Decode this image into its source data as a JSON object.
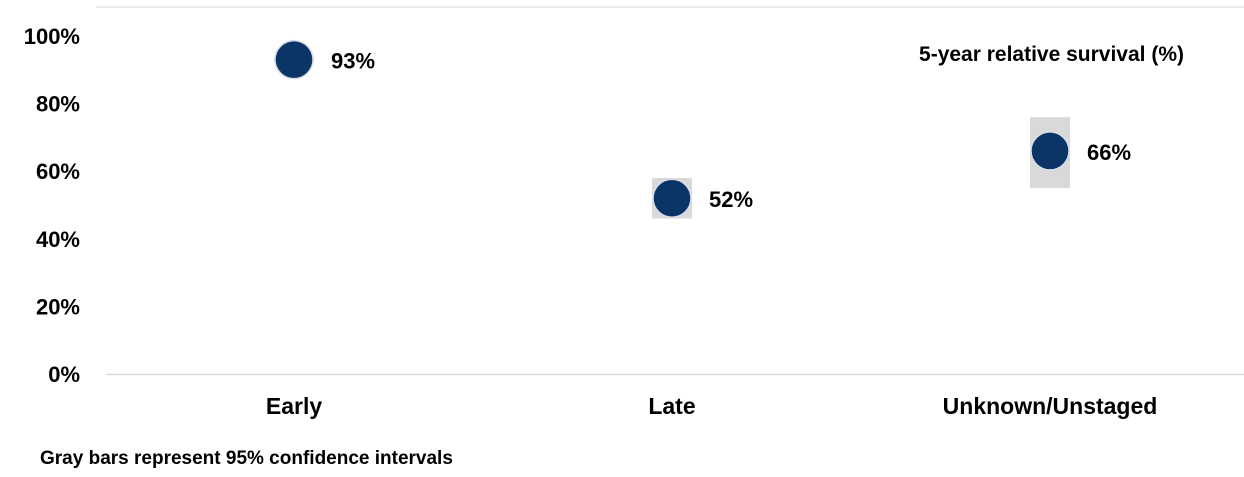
{
  "chart_data": {
    "type": "scatter",
    "title": "5-year relative survival (%)",
    "categories": [
      "Early",
      "Late",
      "Unknown/Unstaged"
    ],
    "series": [
      {
        "values": [
          93,
          52,
          66
        ],
        "labels": [
          "93%",
          "52%",
          "66%"
        ],
        "ci_low": [
          92,
          46,
          55
        ],
        "ci_high": [
          94,
          58,
          76
        ]
      }
    ],
    "ylim": [
      0,
      100
    ],
    "yticks": [
      0,
      20,
      40,
      60,
      80,
      100
    ],
    "ytick_labels": [
      "0%",
      "20%",
      "40%",
      "60%",
      "80%",
      "100%"
    ],
    "grid": false,
    "legend": "none",
    "marker_color": "#0b3566",
    "ci_color": "#d9d9d9",
    "axis_color": "#d9d9d9"
  },
  "footnote": "Gray bars represent 95% confidence intervals"
}
